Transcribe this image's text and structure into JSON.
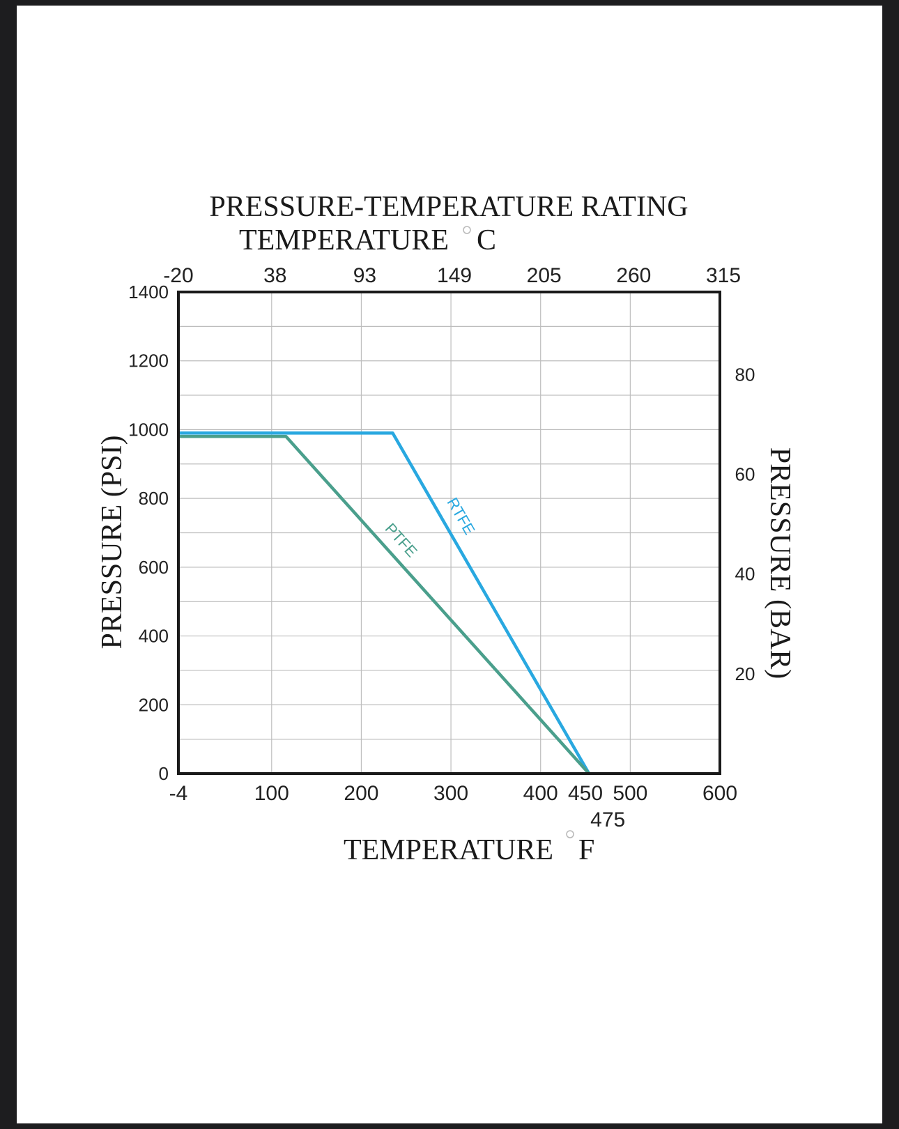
{
  "chart_data": {
    "type": "line",
    "title": "PRESSURE-TEMPERATURE RATING",
    "top_axis_label": "TEMPERATURE",
    "top_axis_unit": "C",
    "top_axis_ticks": [
      "-20",
      "38",
      "93",
      "149",
      "205",
      "260",
      "315"
    ],
    "xlabel": "TEMPERATURE",
    "xlabel_unit": "F",
    "x_ticks": [
      {
        "value": -4,
        "label": "-4"
      },
      {
        "value": 100,
        "label": "100"
      },
      {
        "value": 200,
        "label": "200"
      },
      {
        "value": 300,
        "label": "300"
      },
      {
        "value": 400,
        "label": "400"
      },
      {
        "value": 450,
        "label": "450"
      },
      {
        "value": 500,
        "label": "500"
      },
      {
        "value": 600,
        "label": "600"
      }
    ],
    "x_extra_label": {
      "value": 475,
      "label": "475"
    },
    "xlim": [
      -4,
      600
    ],
    "ylabel": "PRESSURE (PSI)",
    "y_ticks": [
      "0",
      "200",
      "400",
      "600",
      "800",
      "1000",
      "1200",
      "1400"
    ],
    "ylim": [
      0,
      1400
    ],
    "y2label": "PRESSURE (BAR)",
    "y2_ticks": [
      {
        "value": 20,
        "label": "20"
      },
      {
        "value": 40,
        "label": "40"
      },
      {
        "value": 60,
        "label": "60"
      },
      {
        "value": 80,
        "label": "80"
      }
    ],
    "grid": true,
    "series": [
      {
        "name": "RTFE",
        "color": "#29a8e0",
        "x": [
          -4,
          235,
          454
        ],
        "y": [
          990,
          990,
          0
        ]
      },
      {
        "name": "PTFE",
        "color": "#4a9f8c",
        "x": [
          -4,
          116,
          454
        ],
        "y": [
          980,
          980,
          0
        ]
      }
    ]
  }
}
